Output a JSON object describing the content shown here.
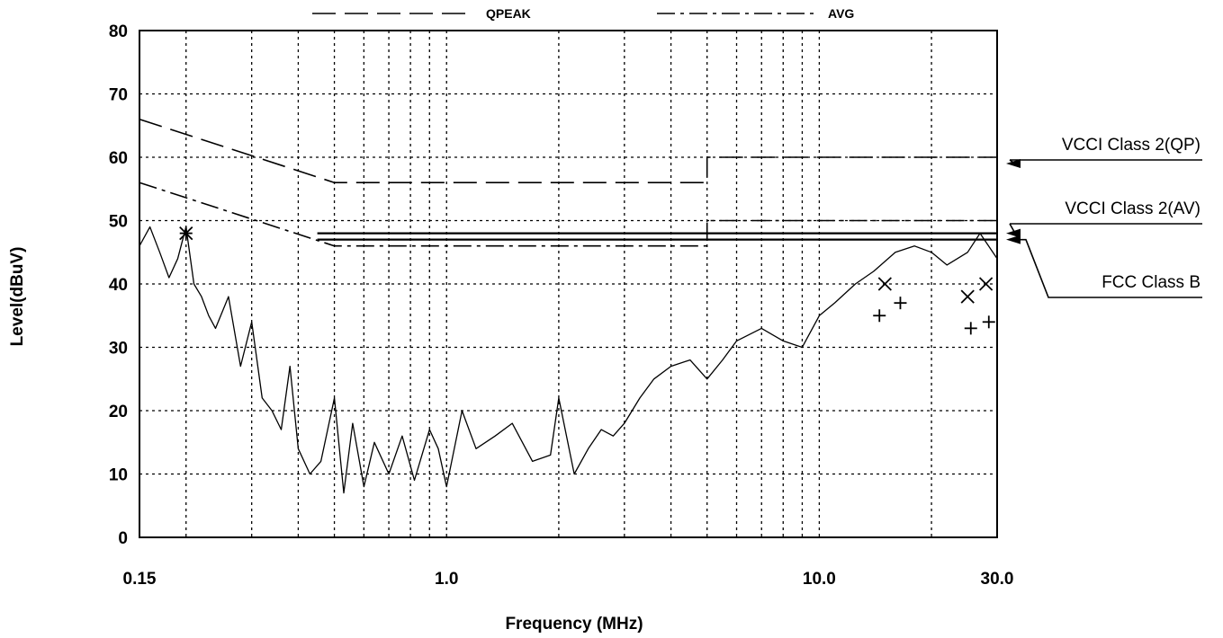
{
  "chart_data": {
    "type": "line",
    "xlabel": "Frequency (MHz)",
    "ylabel": "Level(dBuV)",
    "x_scale": "log",
    "xlim": [
      0.15,
      30.0
    ],
    "ylim": [
      0,
      80
    ],
    "grid": true,
    "x_tick_labels": [
      "0.15",
      "1.0",
      "10.0",
      "30.0"
    ],
    "x_tick_values": [
      0.15,
      1.0,
      10.0,
      30.0
    ],
    "y_ticks": [
      0,
      10,
      20,
      30,
      40,
      50,
      60,
      70,
      80
    ],
    "legend": [
      {
        "label": "QPEAK",
        "style": "dashed"
      },
      {
        "label": "AVG",
        "style": "dash-dot"
      }
    ],
    "series": [
      {
        "name": "QPEAK",
        "style": "dashed",
        "x": [
          0.15,
          0.5,
          0.5,
          5.0,
          5.0,
          30.0
        ],
        "y": [
          66,
          56,
          56,
          56,
          60,
          60
        ]
      },
      {
        "name": "AVG",
        "style": "dash-dot",
        "x": [
          0.15,
          0.5,
          0.5,
          5.0,
          5.0,
          30.0
        ],
        "y": [
          56,
          46,
          46,
          46,
          50,
          50
        ]
      },
      {
        "style": "solid",
        "x": [
          0.45,
          5.0,
          5.0,
          30.0
        ],
        "y": [
          48,
          48,
          48,
          48
        ]
      },
      {
        "style": "solid",
        "x": [
          0.45,
          30.0
        ],
        "y": [
          47,
          47
        ]
      },
      {
        "style": "solid-thin",
        "role": "measurement",
        "x": [
          0.15,
          0.16,
          0.17,
          0.18,
          0.19,
          0.2,
          0.21,
          0.22,
          0.23,
          0.24,
          0.26,
          0.28,
          0.3,
          0.32,
          0.34,
          0.36,
          0.38,
          0.4,
          0.43,
          0.46,
          0.5,
          0.53,
          0.56,
          0.6,
          0.64,
          0.7,
          0.76,
          0.82,
          0.9,
          0.95,
          1.0,
          1.1,
          1.2,
          1.35,
          1.5,
          1.7,
          1.9,
          2.0,
          2.2,
          2.4,
          2.6,
          2.8,
          3.0,
          3.3,
          3.6,
          4.0,
          4.5,
          5.0,
          5.5,
          6.0,
          7.0,
          8.0,
          9.0,
          10.0,
          11.0,
          12.5,
          14.0,
          16.0,
          18.0,
          20.0,
          22.0,
          25.0,
          27.0,
          30.0
        ],
        "y": [
          46,
          49,
          45,
          41,
          44,
          49,
          40,
          38,
          35,
          33,
          38,
          27,
          34,
          22,
          20,
          17,
          27,
          14,
          10,
          12,
          22,
          7,
          18,
          8,
          15,
          10,
          16,
          9,
          17,
          14,
          8,
          20,
          14,
          16,
          18,
          12,
          13,
          22,
          10,
          14,
          17,
          16,
          18,
          22,
          25,
          27,
          28,
          25,
          28,
          31,
          33,
          31,
          30,
          35,
          37,
          40,
          42,
          45,
          46,
          45,
          43,
          45,
          48,
          44
        ]
      }
    ],
    "markers": [
      {
        "symbol": "x",
        "points": [
          {
            "x": 0.2,
            "y": 48
          },
          {
            "x": 15.0,
            "y": 40
          },
          {
            "x": 25.0,
            "y": 38
          },
          {
            "x": 28.0,
            "y": 40
          }
        ]
      },
      {
        "symbol": "+",
        "points": [
          {
            "x": 0.2,
            "y": 48
          },
          {
            "x": 14.5,
            "y": 35
          },
          {
            "x": 16.5,
            "y": 37
          },
          {
            "x": 25.5,
            "y": 33
          },
          {
            "x": 28.5,
            "y": 34
          }
        ]
      }
    ],
    "limit_labels": [
      {
        "text": "VCCI Class 2(QP)",
        "points_to_y": 59
      },
      {
        "text": "VCCI Class 2(AV)",
        "points_to_y": 48
      },
      {
        "text": "FCC Class B",
        "points_to_y": 47
      }
    ]
  }
}
